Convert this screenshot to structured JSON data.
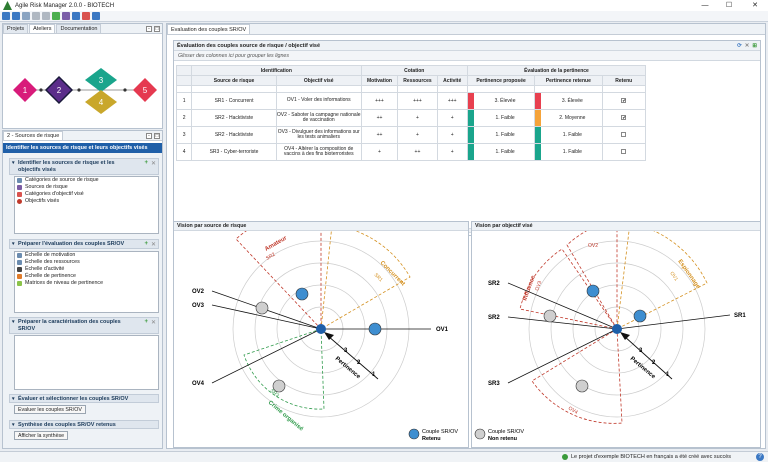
{
  "app": {
    "title": "Agile Risk Manager 2.0.0 - BIOTECH",
    "min": "—",
    "max": "☐",
    "close": "✕"
  },
  "left_tabs": [
    "Projets",
    "Ateliers",
    "Documentation"
  ],
  "workshops": [
    "1",
    "2",
    "3",
    "4",
    "5"
  ],
  "sources_panel": {
    "tab": "2 - Sources de risque",
    "header": "Identifier les sources de risque et leurs objectifs visés",
    "s1": {
      "title": "Identifier les sources de risque et les objectifs visés",
      "items": [
        "Catégories de source de risque",
        "Sources de risque",
        "Catégories d'objectif visé",
        "Objectifs visés"
      ]
    },
    "s2": {
      "title": "Préparer l'évaluation des couples SR/OV",
      "items": [
        "Échelle de motivation",
        "Échelle des ressources",
        "Échelle d'activité",
        "Échelle de pertinence",
        "Matrices de niveau de pertinence"
      ]
    },
    "s3": {
      "title": "Préparer la caractérisation des couples SR/OV"
    },
    "s4": {
      "title": "Évaluer et sélectionner les couples SR/OV",
      "button": "Evaluer les couples SR/OV"
    },
    "s5": {
      "title": "Synthèse des couples SR/OV retenus",
      "button": "Afficher la synthèse"
    }
  },
  "main_tab": "Evaluation des couples SR/OV",
  "eval": {
    "title": "Évaluation des couples source de risque / objectif visé",
    "group_hint": "Glisser des colonnes ici pour grouper les lignes",
    "groups": {
      "identification": "Identification",
      "cotation": "Cotation",
      "evaluation": "Évaluation de la pertinence"
    },
    "columns": [
      "Source de risque",
      "Objectif visé",
      "Motivation",
      "Ressources",
      "Activité",
      "Pertinence proposée",
      "Pertinence retenue",
      "Retenu"
    ],
    "rows": [
      {
        "n": "1",
        "sr": "SR1 - Concurrent",
        "ov": "OV1 - Voler des informations",
        "mot": "+++",
        "res": "+++",
        "act": "+++",
        "pp": "3. Élevée",
        "pr": "3. Élevée",
        "ret": "✔",
        "pp_c": "#e8404f",
        "pr_c": "#e8404f"
      },
      {
        "n": "2",
        "sr": "SR2 - Hacktiviste",
        "ov": "OV2 - Saboter la campagne nationale de vaccination",
        "mot": "++",
        "res": "+",
        "act": "+",
        "pp": "1. Faible",
        "pr": "2. Moyenne",
        "ret": "✔",
        "pp_c": "#1aa58c",
        "pr_c": "#f5a33a"
      },
      {
        "n": "3",
        "sr": "SR2 - Hacktiviste",
        "ov": "OV3 - Divulguer des informations sur les tests animaliers",
        "mot": "++",
        "res": "+",
        "act": "+",
        "pp": "1. Faible",
        "pr": "1. Faible",
        "ret": "",
        "pp_c": "#1aa58c",
        "pr_c": "#1aa58c"
      },
      {
        "n": "4",
        "sr": "SR3 - Cyber-terroriste",
        "ov": "OV4 - Altérer la composition de vaccins à des fins bioterroristes",
        "mot": "+",
        "res": "++",
        "act": "+",
        "pp": "1. Faible",
        "pr": "1. Faible",
        "ret": "",
        "pp_c": "#1aa58c",
        "pr_c": "#1aa58c"
      }
    ]
  },
  "radar_left": {
    "title": "Vision par source de risque",
    "sectors": [
      "Amateur",
      "SR2",
      "Concurrent",
      "SR1",
      "Crime organisé",
      "SR3"
    ],
    "points": [
      "OV1",
      "OV2",
      "OV3",
      "OV4"
    ],
    "axis": [
      "3",
      "2",
      "1"
    ],
    "axis_label": "Pertinence"
  },
  "radar_right": {
    "title": "Vision par objectif visé",
    "sectors": [
      "OV2",
      "Espionnage",
      "OV1",
      "Influence",
      "OV3",
      "OV4"
    ],
    "points": [
      "SR1",
      "SR2",
      "SR2",
      "SR3"
    ],
    "axis": [
      "3",
      "2",
      "1"
    ],
    "axis_label": "Pertinence"
  },
  "legend": {
    "retenu": [
      "Couple SR/OV",
      "Retenu"
    ],
    "non_retenu": [
      "Couple SR/OV",
      "Non retenu"
    ]
  },
  "status": {
    "message": "Le projet d'exemple BIOTECH en français a été créé avec succès",
    "help": "?"
  },
  "colors": {
    "accent": "#1f5fa8",
    "teal": "#1aa58c",
    "red": "#e8404f",
    "orange": "#f5a33a"
  }
}
